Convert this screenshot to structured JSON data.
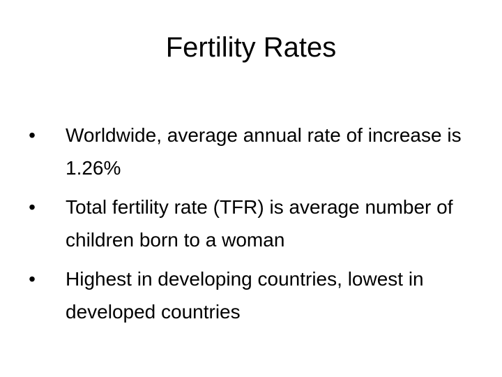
{
  "slide": {
    "title": "Fertility Rates",
    "bullets": [
      {
        "marker": "•",
        "text": "Worldwide, average annual rate of increase is 1.26%"
      },
      {
        "marker": "•",
        "text": "Total fertility rate (TFR) is average number of children born to a woman"
      },
      {
        "marker": "•",
        "text": "Highest in developing countries, lowest in developed countries"
      }
    ]
  }
}
